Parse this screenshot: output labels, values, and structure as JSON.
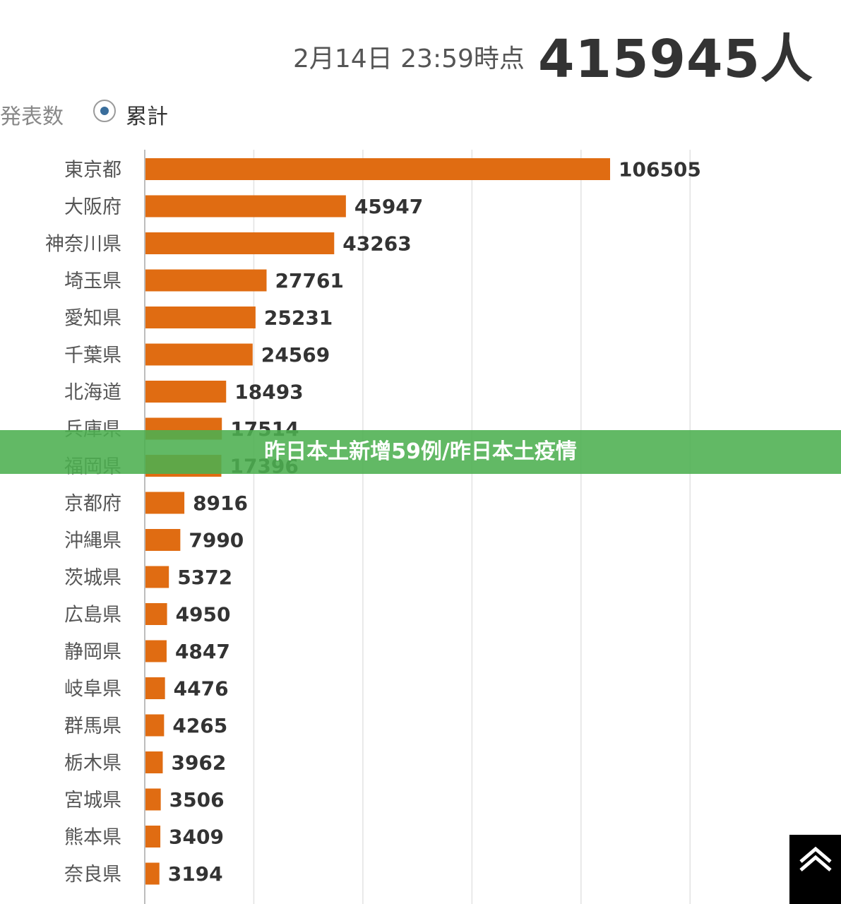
{
  "header": {
    "timestamp": "2月14日 23:59時点",
    "total": "415945人"
  },
  "mode": {
    "left_label": "発表数",
    "selected_label": "累計"
  },
  "banner": {
    "text": "昨日本土新增59例/昨日本土疫情",
    "color": "#4caf50"
  },
  "back_to_top": {
    "icon": "chevron-up-icon"
  },
  "chart_data": {
    "type": "bar",
    "orientation": "horizontal",
    "categories": [
      "東京都",
      "大阪府",
      "神奈川県",
      "埼玉県",
      "愛知県",
      "千葉県",
      "北海道",
      "兵庫県",
      "福岡県",
      "京都府",
      "沖縄県",
      "茨城県",
      "広島県",
      "静岡県",
      "岐阜県",
      "群馬県",
      "栃木県",
      "宮城県",
      "熊本県",
      "奈良県"
    ],
    "values": [
      106505,
      45947,
      43263,
      27761,
      25231,
      24569,
      18493,
      17514,
      17396,
      8916,
      7990,
      5372,
      4950,
      4847,
      4476,
      4265,
      3962,
      3506,
      3409,
      3194
    ],
    "xlim": [
      0,
      125000
    ],
    "grid": true,
    "bar_color": "#e06c12"
  }
}
